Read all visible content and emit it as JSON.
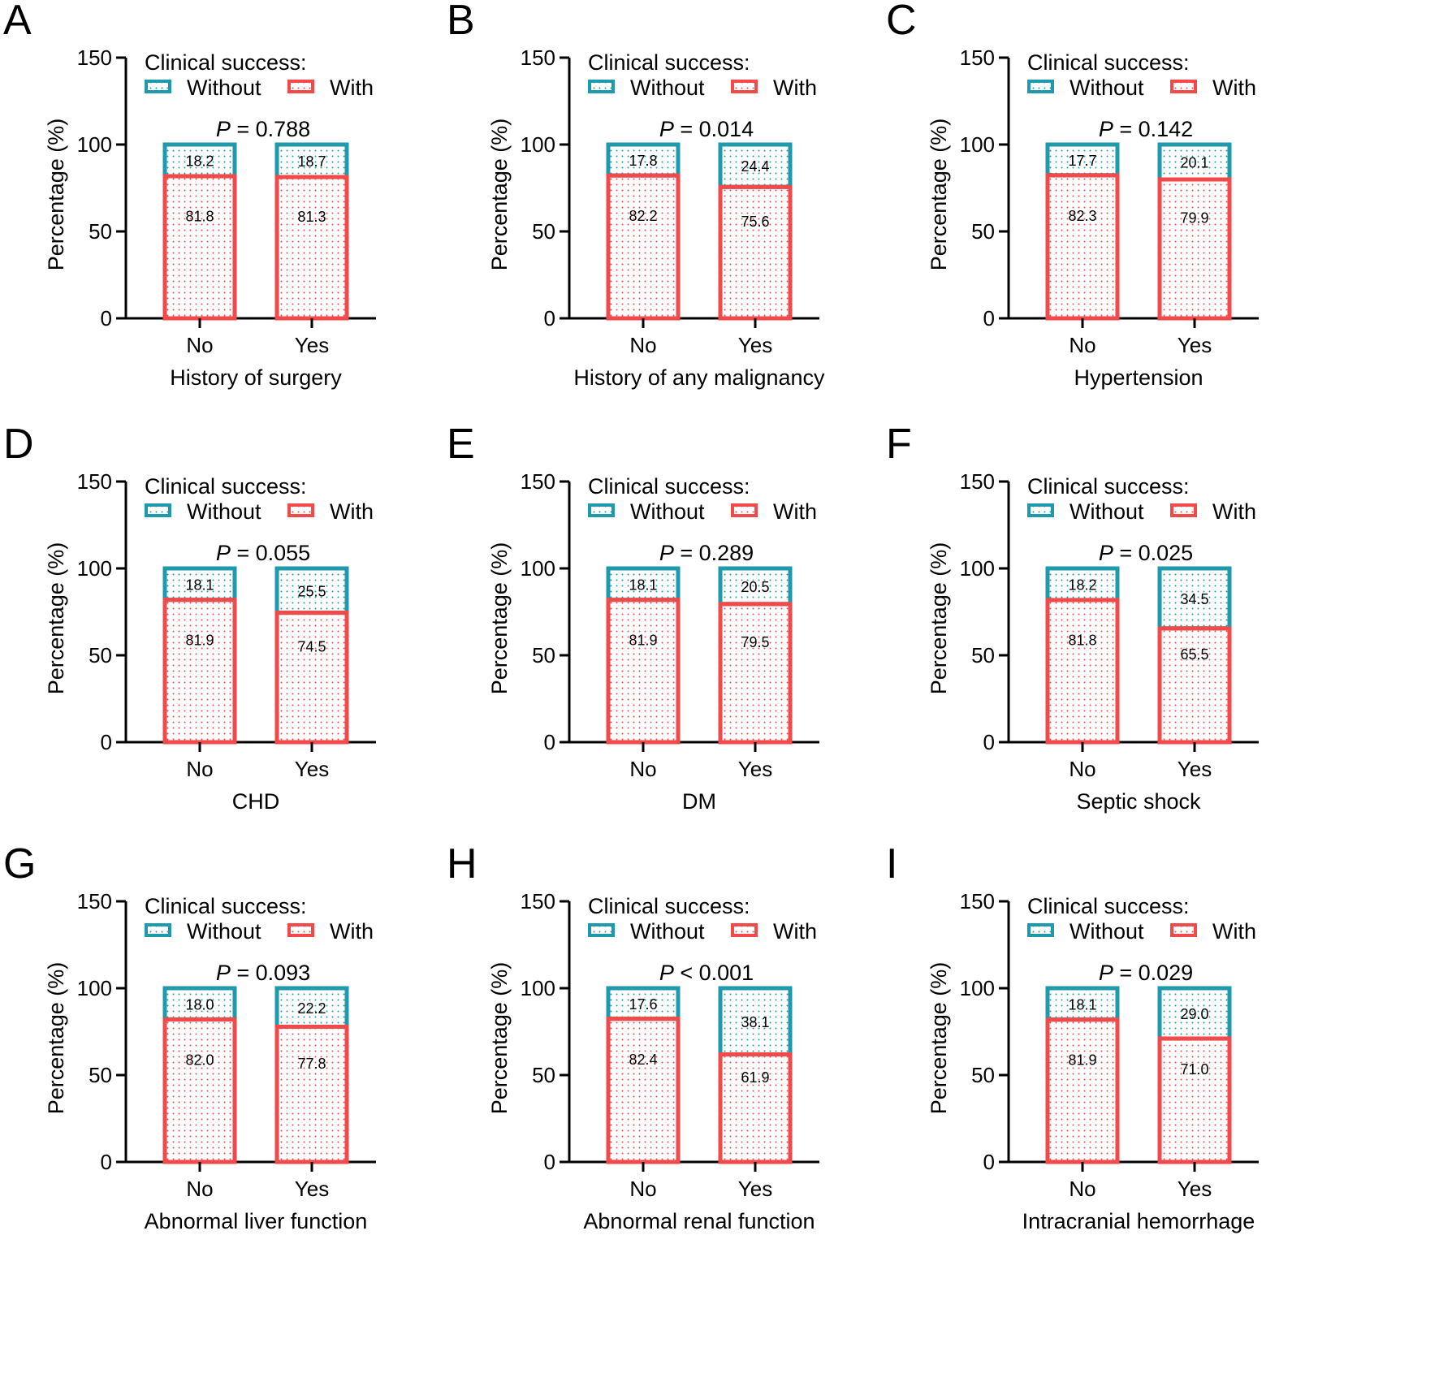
{
  "figure": {
    "colors": {
      "without": "#1f9aad",
      "with": "#f24a4a",
      "axis": "#000000"
    },
    "legend_title": "Clinical success:",
    "legend_items": [
      {
        "key": "without",
        "label": "Without"
      },
      {
        "key": "with",
        "label": "With"
      }
    ]
  },
  "chart_data": [
    {
      "type": "bar",
      "stacked": true,
      "panel": "A",
      "categories": [
        "No",
        "Yes"
      ],
      "xlabel": "History of surgery",
      "ylabel": "Percentage (%)",
      "ylim": [
        0,
        150
      ],
      "yticks": [
        0,
        50,
        100,
        150
      ],
      "p_prefix": "P",
      "p_text": " = 0.788",
      "series": [
        {
          "name": "Without",
          "values": [
            18.2,
            18.7
          ]
        },
        {
          "name": "With",
          "values": [
            81.8,
            81.3
          ]
        }
      ]
    },
    {
      "type": "bar",
      "stacked": true,
      "panel": "B",
      "categories": [
        "No",
        "Yes"
      ],
      "xlabel": "History of any malignancy",
      "ylabel": "Percentage (%)",
      "ylim": [
        0,
        150
      ],
      "yticks": [
        0,
        50,
        100,
        150
      ],
      "p_prefix": "P",
      "p_text": " = 0.014",
      "series": [
        {
          "name": "Without",
          "values": [
            17.8,
            24.4
          ]
        },
        {
          "name": "With",
          "values": [
            82.2,
            75.6
          ]
        }
      ]
    },
    {
      "type": "bar",
      "stacked": true,
      "panel": "C",
      "categories": [
        "No",
        "Yes"
      ],
      "xlabel": "Hypertension",
      "ylabel": "Percentage (%)",
      "ylim": [
        0,
        150
      ],
      "yticks": [
        0,
        50,
        100,
        150
      ],
      "p_prefix": "P",
      "p_text": " = 0.142",
      "series": [
        {
          "name": "Without",
          "values": [
            17.7,
            20.1
          ]
        },
        {
          "name": "With",
          "values": [
            82.3,
            79.9
          ]
        }
      ]
    },
    {
      "type": "bar",
      "stacked": true,
      "panel": "D",
      "categories": [
        "No",
        "Yes"
      ],
      "xlabel": "CHD",
      "ylabel": "Percentage (%)",
      "ylim": [
        0,
        150
      ],
      "yticks": [
        0,
        50,
        100,
        150
      ],
      "p_prefix": "P",
      "p_text": " = 0.055",
      "series": [
        {
          "name": "Without",
          "values": [
            18.1,
            25.5
          ]
        },
        {
          "name": "With",
          "values": [
            81.9,
            74.5
          ]
        }
      ]
    },
    {
      "type": "bar",
      "stacked": true,
      "panel": "E",
      "categories": [
        "No",
        "Yes"
      ],
      "xlabel": "DM",
      "ylabel": "Percentage (%)",
      "ylim": [
        0,
        150
      ],
      "yticks": [
        0,
        50,
        100,
        150
      ],
      "p_prefix": "P",
      "p_text": " = 0.289",
      "series": [
        {
          "name": "Without",
          "values": [
            18.1,
            20.5
          ]
        },
        {
          "name": "With",
          "values": [
            81.9,
            79.5
          ]
        }
      ]
    },
    {
      "type": "bar",
      "stacked": true,
      "panel": "F",
      "categories": [
        "No",
        "Yes"
      ],
      "xlabel": "Septic shock",
      "ylabel": "Percentage (%)",
      "ylim": [
        0,
        150
      ],
      "yticks": [
        0,
        50,
        100,
        150
      ],
      "p_prefix": "P",
      "p_text": " = 0.025",
      "series": [
        {
          "name": "Without",
          "values": [
            18.2,
            34.5
          ]
        },
        {
          "name": "With",
          "values": [
            81.8,
            65.5
          ]
        }
      ]
    },
    {
      "type": "bar",
      "stacked": true,
      "panel": "G",
      "categories": [
        "No",
        "Yes"
      ],
      "xlabel": "Abnormal liver function",
      "ylabel": "Percentage (%)",
      "ylim": [
        0,
        150
      ],
      "yticks": [
        0,
        50,
        100,
        150
      ],
      "p_prefix": "P",
      "p_text": " = 0.093",
      "series": [
        {
          "name": "Without",
          "values": [
            18.0,
            22.2
          ]
        },
        {
          "name": "With",
          "values": [
            82.0,
            77.8
          ]
        }
      ]
    },
    {
      "type": "bar",
      "stacked": true,
      "panel": "H",
      "categories": [
        "No",
        "Yes"
      ],
      "xlabel": "Abnormal renal function",
      "ylabel": "Percentage (%)",
      "ylim": [
        0,
        150
      ],
      "yticks": [
        0,
        50,
        100,
        150
      ],
      "p_prefix": "P",
      "p_text": " < 0.001",
      "series": [
        {
          "name": "Without",
          "values": [
            17.6,
            38.1
          ]
        },
        {
          "name": "With",
          "values": [
            82.4,
            61.9
          ]
        }
      ]
    },
    {
      "type": "bar",
      "stacked": true,
      "panel": "I",
      "categories": [
        "No",
        "Yes"
      ],
      "xlabel": "Intracranial hemorrhage",
      "ylabel": "Percentage (%)",
      "ylim": [
        0,
        150
      ],
      "yticks": [
        0,
        50,
        100,
        150
      ],
      "p_prefix": "P",
      "p_text": " = 0.029",
      "series": [
        {
          "name": "Without",
          "values": [
            18.1,
            29.0
          ]
        },
        {
          "name": "With",
          "values": [
            81.9,
            71.0
          ]
        }
      ]
    }
  ]
}
